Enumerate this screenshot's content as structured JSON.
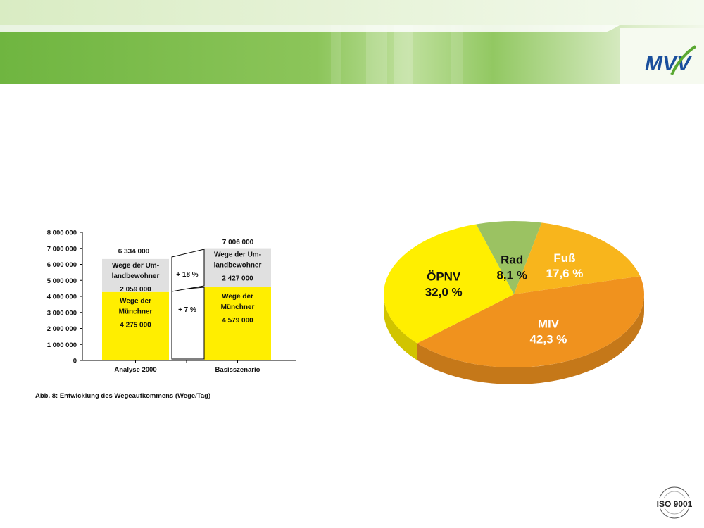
{
  "header": {
    "logo_text": "MVV",
    "colors": {
      "band_dark": "#6fb540",
      "band_light": "#c9e4a6",
      "top_strip": "#e4f2d4"
    }
  },
  "chart_data": [
    {
      "type": "bar",
      "stacked": true,
      "categories": [
        "Analyse 2000",
        "Basisszenario"
      ],
      "ylim": [
        0,
        8000000
      ],
      "yticks": [
        "0",
        "1 000 000",
        "2 000 000",
        "3 000 000",
        "4 000 000",
        "5 000 000",
        "6 000 000",
        "7 000 000",
        "8 000 000"
      ],
      "series": [
        {
          "values": [
            4275000,
            4579000
          ],
          "color": "#ffee00",
          "labels": [
            [
              "Wege der",
              "Münchner",
              "4 275 000"
            ],
            [
              "Wege der",
              "Münchner",
              "4 579 000"
            ]
          ]
        },
        {
          "values": [
            2059000,
            2427000
          ],
          "color": "#e0e0e0",
          "labels": [
            [
              "Wege der Um-",
              "landbewohner",
              "2 059 000"
            ],
            [
              "Wege der Um-",
              "landbewohner",
              "2 427 000"
            ]
          ]
        }
      ],
      "totals": [
        "6 334 000",
        "7 006 000"
      ],
      "growth": {
        "lower": "+ 7 %",
        "upper": "+ 18 %"
      },
      "caption": "Abb. 8: Entwicklung des Wegeaufkommens (Wege/Tag)"
    },
    {
      "type": "pie",
      "three_d": true,
      "slices": [
        {
          "label": "MIV",
          "value": 42.3,
          "text": "42,3 %",
          "color": "#f0921e"
        },
        {
          "label": "ÖPNV",
          "value": 32.0,
          "text": "32,0 %",
          "color": "#ffef00"
        },
        {
          "label": "Rad",
          "value": 8.1,
          "text": "8,1 %",
          "color": "#9bc262"
        },
        {
          "label": "Fuß",
          "value": 17.6,
          "text": "17,6 %",
          "color": "#f8b51c"
        }
      ]
    }
  ],
  "footer": {
    "seal_text": "ISO 9001"
  }
}
